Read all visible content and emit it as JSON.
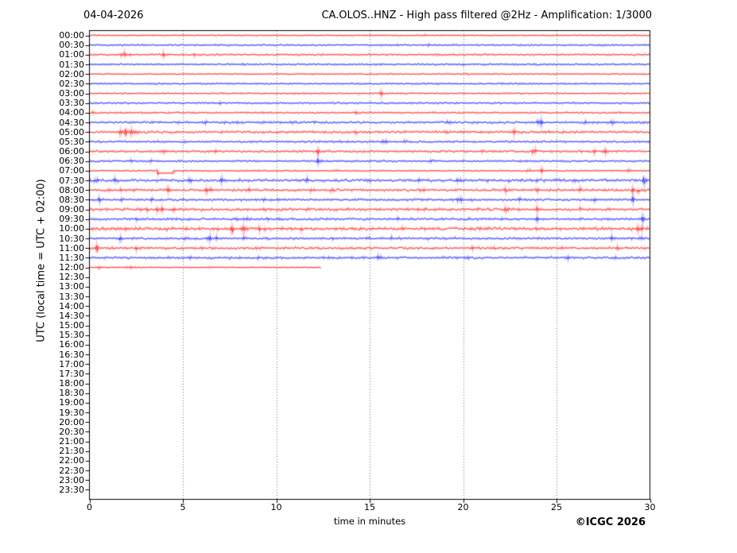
{
  "header": {
    "date_label": "04-04-2026",
    "title": "CA.OLOS..HNZ - High pass filtered @2Hz - Amplification: 1/3000"
  },
  "footer": {
    "copyright": "©ICGC 2026"
  },
  "chart_data": {
    "type": "line",
    "subtype": "helicorder-seismogram",
    "title": "CA.OLOS..HNZ - High pass filtered @2Hz - Amplification: 1/3000",
    "date_label": "04-04-2026",
    "xlabel": "time in minutes",
    "ylabel": "UTC (local time = UTC + 02:00)",
    "xlim": [
      0,
      30
    ],
    "xticks": [
      0,
      5,
      10,
      15,
      20,
      25,
      30
    ],
    "grid_minutes": [
      5,
      10,
      15,
      20,
      25
    ],
    "grid_style": "dotted",
    "minutes_per_row": 30,
    "trace_colors": {
      "red": "#ff0000",
      "blue": "#0000ff"
    },
    "frame_color": "#000000",
    "row_labels": [
      "00:00",
      "00:30",
      "01:00",
      "01:30",
      "02:00",
      "02:30",
      "03:00",
      "03:30",
      "04:00",
      "04:30",
      "05:00",
      "05:30",
      "06:00",
      "06:30",
      "07:00",
      "07:30",
      "08:00",
      "08:30",
      "09:00",
      "09:30",
      "10:00",
      "10:30",
      "11:00",
      "11:30",
      "12:00",
      "12:30",
      "13:00",
      "13:30",
      "14:00",
      "14:30",
      "15:00",
      "15:30",
      "16:00",
      "16:30",
      "17:00",
      "17:30",
      "18:00",
      "18:30",
      "19:00",
      "19:30",
      "20:00",
      "20:30",
      "21:00",
      "21:30",
      "22:00",
      "22:30",
      "23:00",
      "23:30"
    ],
    "traces": [
      {
        "label": "00:00",
        "color": "red",
        "noise": 0.35,
        "end": 30,
        "events": [
          [
            18,
            0.8,
            0.1
          ],
          [
            29.2,
            1.1,
            0.08
          ]
        ]
      },
      {
        "label": "00:30",
        "color": "blue",
        "noise": 0.5,
        "end": 30,
        "events": [
          [
            16.5,
            0.9,
            0.1
          ],
          [
            18.1,
            1.2,
            0.1
          ],
          [
            27.5,
            1.1,
            0.1
          ]
        ]
      },
      {
        "label": "01:00",
        "color": "red",
        "noise": 0.55,
        "end": 30,
        "events": [
          [
            1.8,
            2.6,
            0.13
          ],
          [
            2.1,
            1.6,
            0.1
          ],
          [
            4.0,
            2.4,
            0.13
          ],
          [
            5.6,
            1.2,
            0.1
          ],
          [
            12.4,
            0.9,
            0.1
          ]
        ]
      },
      {
        "label": "01:30",
        "color": "blue",
        "noise": 0.55,
        "end": 30,
        "events": [
          [
            8.2,
            0.8,
            0.1
          ],
          [
            20,
            0.8,
            0.1
          ]
        ]
      },
      {
        "label": "02:00",
        "color": "red",
        "noise": 0.4,
        "end": 30,
        "events": [
          [
            20.3,
            0.8,
            0.08
          ]
        ]
      },
      {
        "label": "02:30",
        "color": "blue",
        "noise": 0.5,
        "end": 30,
        "events": []
      },
      {
        "label": "03:00",
        "color": "red",
        "noise": 0.5,
        "end": 30,
        "events": [
          [
            15.6,
            2.6,
            0.1
          ]
        ]
      },
      {
        "label": "03:30",
        "color": "blue",
        "noise": 0.55,
        "end": 30,
        "events": [
          [
            7,
            0.8,
            0.1
          ]
        ]
      },
      {
        "label": "04:00",
        "color": "red",
        "noise": 0.55,
        "end": 30,
        "events": [
          [
            0.2,
            1.3,
            0.08
          ],
          [
            14.35,
            2.2,
            0.1
          ],
          [
            29.2,
            1.2,
            0.08
          ]
        ]
      },
      {
        "label": "04:30",
        "color": "blue",
        "noise": 0.75,
        "end": 30,
        "events": [
          [
            6.2,
            1.4,
            0.12
          ],
          [
            7.9,
            1.4,
            0.12
          ],
          [
            9.3,
            1.3,
            0.1
          ],
          [
            10.9,
            1.3,
            0.1
          ],
          [
            19.2,
            1.5,
            0.12
          ],
          [
            22,
            1.2,
            0.1
          ],
          [
            24.1,
            3.2,
            0.15
          ],
          [
            26.6,
            1.4,
            0.1
          ],
          [
            28,
            1.8,
            0.12
          ]
        ]
      },
      {
        "label": "05:00",
        "color": "red",
        "noise": 0.85,
        "end": 30,
        "events": [
          [
            1.7,
            3,
            0.12
          ],
          [
            1.95,
            4.4,
            0.15
          ],
          [
            2.3,
            2.8,
            0.12
          ],
          [
            2.6,
            1.8,
            0.1
          ],
          [
            14.3,
            1.6,
            0.1
          ],
          [
            17.5,
            1.4,
            0.1
          ],
          [
            19,
            1.4,
            0.1
          ],
          [
            22.7,
            2.8,
            0.12
          ],
          [
            26,
            1,
            0.1
          ]
        ]
      },
      {
        "label": "05:30",
        "color": "blue",
        "noise": 0.65,
        "end": 30,
        "events": [
          [
            3.7,
            1,
            0.1
          ],
          [
            5.15,
            1.2,
            0.1
          ],
          [
            10.6,
            1.2,
            0.1
          ],
          [
            13.5,
            1.2,
            0.1
          ],
          [
            15.8,
            2.6,
            0.12
          ],
          [
            16.9,
            1.4,
            0.1
          ]
        ]
      },
      {
        "label": "06:00",
        "color": "red",
        "noise": 0.75,
        "end": 30,
        "events": [
          [
            4.0,
            2.2,
            0.12
          ],
          [
            6.7,
            2,
            0.12
          ],
          [
            12.25,
            2.6,
            0.12
          ],
          [
            21,
            1.4,
            0.1
          ],
          [
            23.8,
            2.8,
            0.12
          ],
          [
            27,
            2.2,
            0.1
          ],
          [
            27.6,
            2.2,
            0.1
          ]
        ]
      },
      {
        "label": "06:30",
        "color": "blue",
        "noise": 0.6,
        "end": 30,
        "events": [
          [
            2.25,
            1.2,
            0.1
          ],
          [
            3.25,
            1.4,
            0.1
          ],
          [
            12.25,
            2.4,
            0.12
          ],
          [
            18.3,
            1.2,
            0.1
          ],
          [
            23,
            1.4,
            0.1
          ]
        ]
      },
      {
        "label": "07:00",
        "color": "red",
        "noise": 0.4,
        "end": 30,
        "steps": [
          [
            3.65,
            4.5,
            3
          ]
        ],
        "events": [
          [
            3.65,
            1.6,
            0.06
          ],
          [
            4.5,
            1.5,
            0.06
          ],
          [
            9,
            0.9,
            0.1
          ],
          [
            13.2,
            1.3,
            0.08
          ],
          [
            23.5,
            2,
            0.1
          ],
          [
            24.2,
            2.6,
            0.12
          ],
          [
            28.9,
            2,
            0.1
          ]
        ]
      },
      {
        "label": "07:30",
        "color": "blue",
        "noise": 0.95,
        "end": 30,
        "events": [
          [
            0.35,
            2.2,
            0.1
          ],
          [
            1.4,
            2.4,
            0.12
          ],
          [
            5.45,
            2.2,
            0.12
          ],
          [
            7.05,
            2.2,
            0.12
          ],
          [
            8.1,
            1.6,
            0.1
          ],
          [
            11.6,
            2.2,
            0.12
          ],
          [
            15,
            1.4,
            0.1
          ],
          [
            17.6,
            1.6,
            0.1
          ],
          [
            19.8,
            2.4,
            0.12
          ],
          [
            21.3,
            2,
            0.12
          ],
          [
            24,
            1.6,
            0.1
          ],
          [
            29.7,
            3.4,
            0.12
          ]
        ]
      },
      {
        "label": "08:00",
        "color": "red",
        "noise": 0.9,
        "end": 30,
        "events": [
          [
            1,
            1.4,
            0.1
          ],
          [
            1.7,
            1.4,
            0.1
          ],
          [
            4.2,
            2.2,
            0.15
          ],
          [
            6.3,
            2.4,
            0.2
          ],
          [
            8.6,
            2.2,
            0.12
          ],
          [
            11.8,
            1.6,
            0.1
          ],
          [
            13,
            1.6,
            0.1
          ],
          [
            17.8,
            1.8,
            0.12
          ],
          [
            22.3,
            2.6,
            0.12
          ],
          [
            24,
            1.8,
            0.1
          ],
          [
            26.3,
            1.8,
            0.12
          ],
          [
            29.1,
            2.2,
            0.1
          ],
          [
            29.4,
            1.8,
            0.08
          ]
        ]
      },
      {
        "label": "08:30",
        "color": "blue",
        "noise": 0.75,
        "end": 30,
        "events": [
          [
            0.55,
            2.2,
            0.1
          ],
          [
            1.75,
            2.2,
            0.12
          ],
          [
            3.3,
            1.4,
            0.1
          ],
          [
            9.3,
            2,
            0.12
          ],
          [
            19.8,
            2.6,
            0.12
          ],
          [
            23,
            1.4,
            0.1
          ],
          [
            27,
            1.8,
            0.1
          ],
          [
            29.1,
            2.8,
            0.1
          ]
        ]
      },
      {
        "label": "09:00",
        "color": "red",
        "noise": 0.95,
        "end": 30,
        "events": [
          [
            2.7,
            1.8,
            0.12
          ],
          [
            3.1,
            2.2,
            0.12
          ],
          [
            3.6,
            2.4,
            0.12
          ],
          [
            3.9,
            1.8,
            0.1
          ],
          [
            4.5,
            1.6,
            0.1
          ],
          [
            5.2,
            1.4,
            0.1
          ],
          [
            18,
            1.8,
            0.12
          ],
          [
            22.3,
            2.6,
            0.12
          ],
          [
            24,
            2.4,
            0.12
          ],
          [
            26.3,
            2,
            0.1
          ],
          [
            28.3,
            1.4,
            0.1
          ]
        ]
      },
      {
        "label": "09:30",
        "color": "blue",
        "noise": 0.75,
        "end": 30,
        "events": [
          [
            2.5,
            1.2,
            0.1
          ],
          [
            7.8,
            1.4,
            0.1
          ],
          [
            8.4,
            1.4,
            0.1
          ],
          [
            9.55,
            2.2,
            0.1
          ],
          [
            10.1,
            1.2,
            0.1
          ],
          [
            16.5,
            1.2,
            0.1
          ],
          [
            19.5,
            1.4,
            0.1
          ],
          [
            24,
            2.8,
            0.08
          ],
          [
            29.6,
            2.8,
            0.1
          ]
        ]
      },
      {
        "label": "10:00",
        "color": "red",
        "noise": 1.15,
        "end": 30,
        "events": [
          [
            2.0,
            1.4,
            0.1
          ],
          [
            3.2,
            2,
            0.12
          ],
          [
            7.65,
            3.4,
            0.15
          ],
          [
            8.3,
            2.6,
            0.12
          ],
          [
            9.1,
            1.8,
            0.1
          ],
          [
            11.3,
            2,
            0.12
          ],
          [
            16.7,
            1.4,
            0.1
          ],
          [
            29.35,
            3.4,
            0.1
          ],
          [
            29.55,
            2.6,
            0.08
          ]
        ]
      },
      {
        "label": "10:30",
        "color": "blue",
        "noise": 0.75,
        "end": 30,
        "events": [
          [
            1.7,
            2,
            0.12
          ],
          [
            5.2,
            2,
            0.12
          ],
          [
            6.4,
            3.2,
            0.12
          ],
          [
            6.85,
            2,
            0.1
          ],
          [
            8.3,
            1.6,
            0.1
          ],
          [
            13,
            1.6,
            0.1
          ],
          [
            14.9,
            2,
            0.1
          ],
          [
            16.1,
            1.6,
            0.1
          ],
          [
            18.1,
            1.6,
            0.1
          ],
          [
            19.5,
            1.8,
            0.1
          ],
          [
            28,
            2.8,
            0.12
          ],
          [
            29.5,
            1.6,
            0.1
          ]
        ]
      },
      {
        "label": "11:00",
        "color": "red",
        "noise": 0.85,
        "end": 30,
        "events": [
          [
            0.42,
            3.4,
            0.12
          ],
          [
            2.5,
            1.4,
            0.1
          ],
          [
            20.5,
            1.8,
            0.12
          ],
          [
            21.7,
            1.8,
            0.1
          ],
          [
            25.2,
            1.4,
            0.1
          ],
          [
            28.3,
            1.8,
            0.1
          ]
        ]
      },
      {
        "label": "11:30",
        "color": "blue",
        "noise": 0.75,
        "end": 30,
        "events": [
          [
            5.4,
            1.4,
            0.1
          ],
          [
            7.5,
            1.2,
            0.1
          ],
          [
            9,
            1.2,
            0.1
          ],
          [
            15.5,
            2.6,
            0.1
          ],
          [
            20.3,
            1.4,
            0.1
          ],
          [
            25.6,
            1.8,
            0.1
          ],
          [
            28.1,
            1.8,
            0.1
          ]
        ]
      },
      {
        "label": "12:00",
        "color": "red",
        "noise": 0.3,
        "end": 12.4,
        "events": [
          [
            0.55,
            1,
            0.1
          ],
          [
            2.2,
            0.9,
            0.35
          ],
          [
            6.4,
            0.9,
            0.1
          ]
        ]
      }
    ]
  }
}
